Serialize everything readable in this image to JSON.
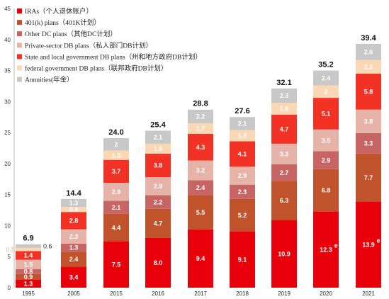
{
  "chart_data": {
    "type": "bar",
    "stacked": true,
    "title": "",
    "xlabel": "",
    "ylabel": "",
    "ylim": [
      0,
      45
    ],
    "yticks": [
      0,
      5,
      10,
      15,
      20,
      25,
      30,
      35,
      40,
      45
    ],
    "grid": false,
    "legend_position": "top-left",
    "categories": [
      "1995",
      "2005",
      "2015",
      "2016",
      "2017",
      "2018",
      "2019",
      "2020",
      "2021"
    ],
    "series": [
      {
        "name": "IRAs（个人退休账户）",
        "color": "#E8000B",
        "values": [
          1.3,
          3.4,
          7.5,
          8.0,
          9.4,
          9.1,
          10.9,
          12.3,
          13.9
        ]
      },
      {
        "name": "401(k) plans（401K计划）",
        "color": "#C0522C",
        "values": [
          0.9,
          2.4,
          4.4,
          4.7,
          5.5,
          5.2,
          6.3,
          6.8,
          7.7
        ]
      },
      {
        "name": "Other DC plans（其他DC计划）",
        "color": "#C76464",
        "values": [
          0.8,
          1.3,
          2.1,
          2.2,
          2.4,
          2.3,
          2.7,
          2.9,
          3.3
        ]
      },
      {
        "name": "Private-sector DB plans（私人部门DB计划）",
        "color": "#E6B3A8",
        "values": [
          1.5,
          2.3,
          2.9,
          2.9,
          3.2,
          2.9,
          3.3,
          3.5,
          3.8
        ]
      },
      {
        "name": "State and local government DB plans（州和地方政府DB计划）",
        "color": "#F23224",
        "values": [
          1.4,
          2.8,
          3.7,
          3.8,
          4.3,
          4.1,
          4.7,
          5.1,
          5.8
        ]
      },
      {
        "name": "federal government DB plans（联邦政府DB计划）",
        "color": "#FCD7B4",
        "values": [
          0.5,
          0.8,
          1.5,
          1.6,
          1.7,
          1.8,
          1.9,
          2.0,
          2.2
        ]
      },
      {
        "name": "Annuities(年金）",
        "color": "#C8C8C8",
        "values": [
          0.6,
          1.3,
          2.0,
          2.1,
          2.2,
          2.1,
          2.3,
          2.4,
          2.6
        ]
      }
    ],
    "totals": [
      "6.9",
      "14.4",
      "24.0",
      "25.4",
      "28.8",
      "27.6",
      "32.1",
      "35.2",
      "39.4"
    ],
    "value_labels": [
      [
        "1.3",
        "3.4",
        "7.5",
        "8.0",
        "9.4",
        "9.1",
        "10.9",
        "12.3",
        "13.9"
      ],
      [
        "0.9",
        "2.4",
        "4.4",
        "4.7",
        "5.5",
        "5.2",
        "6.3",
        "6.8",
        "7.7"
      ],
      [
        "0.8",
        "1.3",
        "2.1",
        "2.2",
        "2.4",
        "2.3",
        "2.7",
        "2.9",
        "3.3"
      ],
      [
        "1.5",
        "2.3",
        "2.9",
        "2.9",
        "3.2",
        "2.9",
        "3.3",
        "3.5",
        "3.8"
      ],
      [
        "1.4",
        "2.8",
        "3.7",
        "3.8",
        "4.3",
        "4.1",
        "4.7",
        "5.1",
        "5.8"
      ],
      [
        "0.5",
        "0.8",
        "1.5",
        "1.6",
        "1.7",
        "1.8",
        "1.9",
        "2",
        "2.2"
      ],
      [
        "0.6",
        "1.3",
        "2",
        "2.1",
        "2.2",
        "2.1",
        "2.3",
        "2.4",
        "2.6"
      ]
    ],
    "estimate_marker": "e",
    "estimate_indices": [
      7,
      8
    ]
  }
}
